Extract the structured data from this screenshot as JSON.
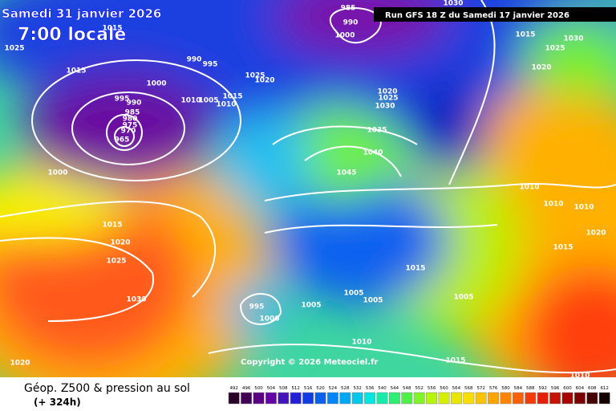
{
  "header": {
    "date": "Samedi 31 janvier 2026",
    "time": "7:00 locale",
    "run": "Run GFS 18 Z du Samedi 17 janvier 2026"
  },
  "copyright": "Copyright © 2026 Meteociel.fr",
  "footer": {
    "caption": "Géop. Z500 & pression au sol",
    "lead": "(+ 324h)"
  },
  "isobar_labels": [
    1015,
    1025,
    1015,
    1000,
    990,
    995,
    995,
    990,
    985,
    980,
    975,
    970,
    965,
    1010,
    1005,
    1015,
    1010,
    1025,
    1020,
    985,
    990,
    1000,
    1030,
    1015,
    1030,
    1025,
    1020,
    1020,
    1025,
    1030,
    1035,
    1040,
    1045,
    1000,
    1015,
    1020,
    1025,
    1030,
    995,
    1000,
    1005,
    1005,
    1005,
    1015,
    1005,
    1010,
    1010,
    1010,
    1020,
    1015,
    1010,
    1015,
    1020,
    1010
  ],
  "legend": {
    "values": [
      492,
      496,
      500,
      504,
      508,
      512,
      516,
      520,
      524,
      528,
      532,
      536,
      540,
      544,
      548,
      552,
      556,
      560,
      564,
      568,
      572,
      576,
      580,
      584,
      588,
      592,
      596,
      600,
      604,
      608,
      612
    ]
  }
}
